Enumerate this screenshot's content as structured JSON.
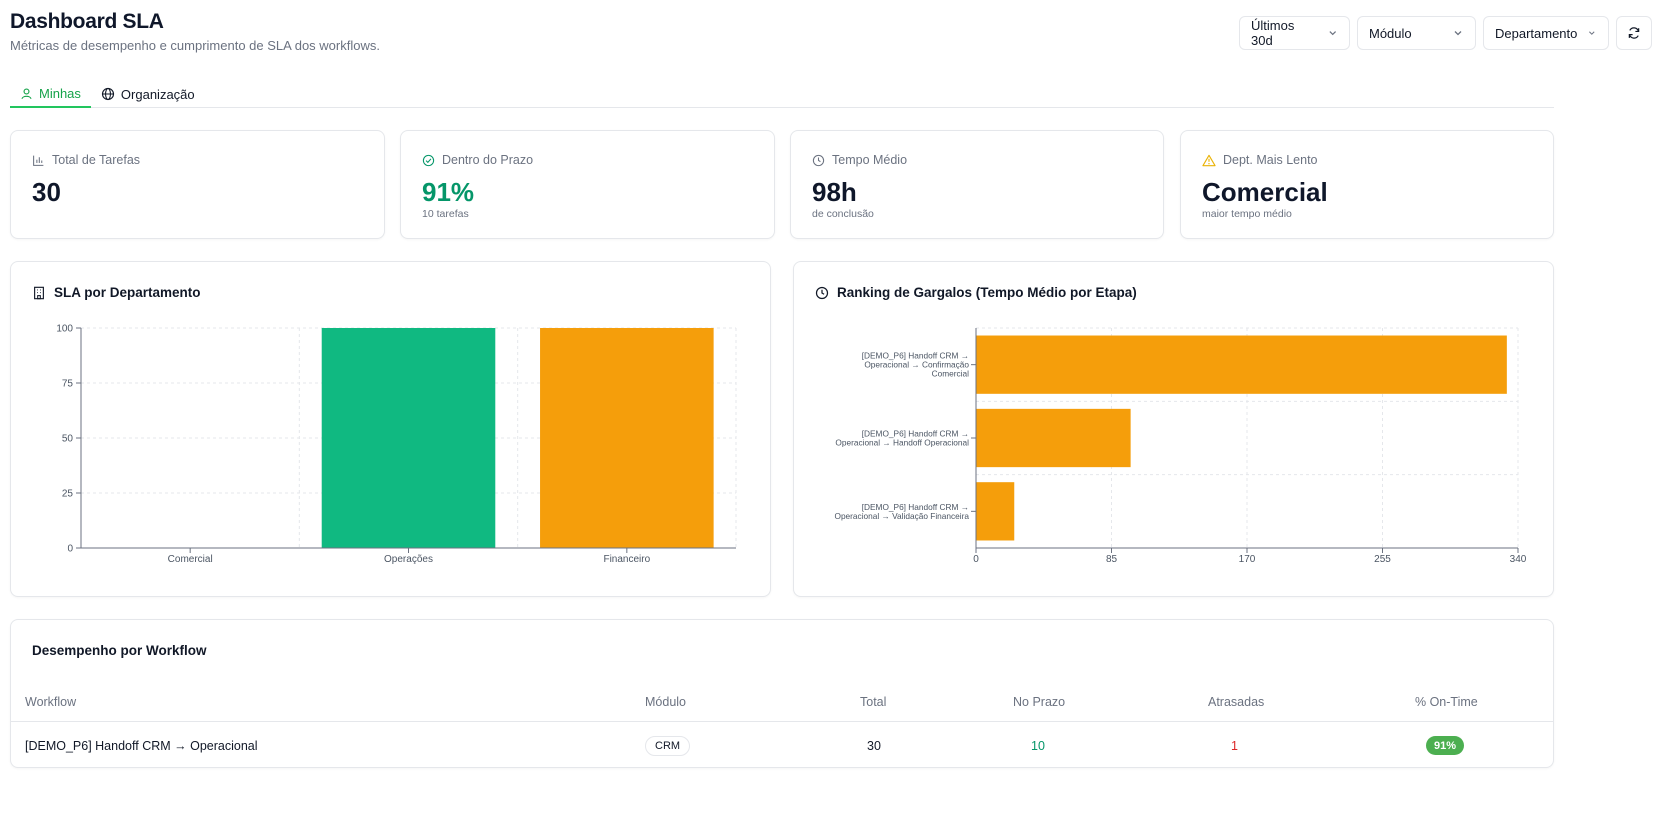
{
  "header": {
    "title": "Dashboard SLA",
    "subtitle": "Métricas de desempenho e cumprimento de SLA dos workflows."
  },
  "filters": {
    "period": "Últimos 30d",
    "module": "Módulo",
    "department": "Departamento"
  },
  "tabs": [
    {
      "label": "Minhas",
      "icon": "user-icon",
      "active": true
    },
    {
      "label": "Organização",
      "icon": "globe-icon",
      "active": false
    }
  ],
  "kpis": [
    {
      "label": "Total de Tarefas",
      "value": "30",
      "sub": "",
      "icon": "bar-chart-icon"
    },
    {
      "label": "Dentro do Prazo",
      "value": "91%",
      "sub": "10 tarefas",
      "icon": "check-circle-icon"
    },
    {
      "label": "Tempo Médio",
      "value": "98h",
      "sub": "de conclusão",
      "icon": "clock-icon"
    },
    {
      "label": "Dept. Mais Lento",
      "value": "Comercial",
      "sub": "maior tempo médio",
      "icon": "warning-icon"
    }
  ],
  "colors": {
    "accent": "#16a34a",
    "green_bar": "#10b981",
    "orange_bar": "#f59e0b",
    "green_text": "#059669",
    "red_text": "#dc2626",
    "warning": "#eab308"
  },
  "chart_data": [
    {
      "type": "bar",
      "title": "SLA por Departamento",
      "categories": [
        "Comercial",
        "Operações",
        "Financeiro"
      ],
      "values": [
        0,
        100,
        100
      ],
      "bar_colors": [
        "#10b981",
        "#10b981",
        "#f59e0b"
      ],
      "ylim": [
        0,
        100
      ],
      "yticks": [
        0,
        25,
        50,
        75,
        100
      ],
      "grid": true
    },
    {
      "type": "bar",
      "orientation": "horizontal",
      "title": "Ranking de Gargalos (Tempo Médio por Etapa)",
      "categories": [
        [
          "[DEMO_P6] Handoff CRM →",
          "Operacional → Confirmação",
          "Comercial"
        ],
        [
          "[DEMO_P6] Handoff CRM →",
          "Operacional → Handoff Operacional"
        ],
        [
          "[DEMO_P6] Handoff CRM →",
          "Operacional → Validação Financeira"
        ]
      ],
      "values": [
        333,
        97,
        24
      ],
      "xlim": [
        0,
        340
      ],
      "xticks": [
        0,
        85,
        170,
        255,
        340
      ],
      "grid": true
    }
  ],
  "table": {
    "title": "Desempenho por Workflow",
    "columns": [
      "Workflow",
      "Módulo",
      "Total",
      "No Prazo",
      "Atrasadas",
      "% On-Time"
    ],
    "rows": [
      {
        "workflow": "[DEMO_P6] Handoff CRM → Operacional",
        "module": "CRM",
        "total": "30",
        "on_time": "10",
        "late": "1",
        "pct": "91%"
      }
    ]
  }
}
